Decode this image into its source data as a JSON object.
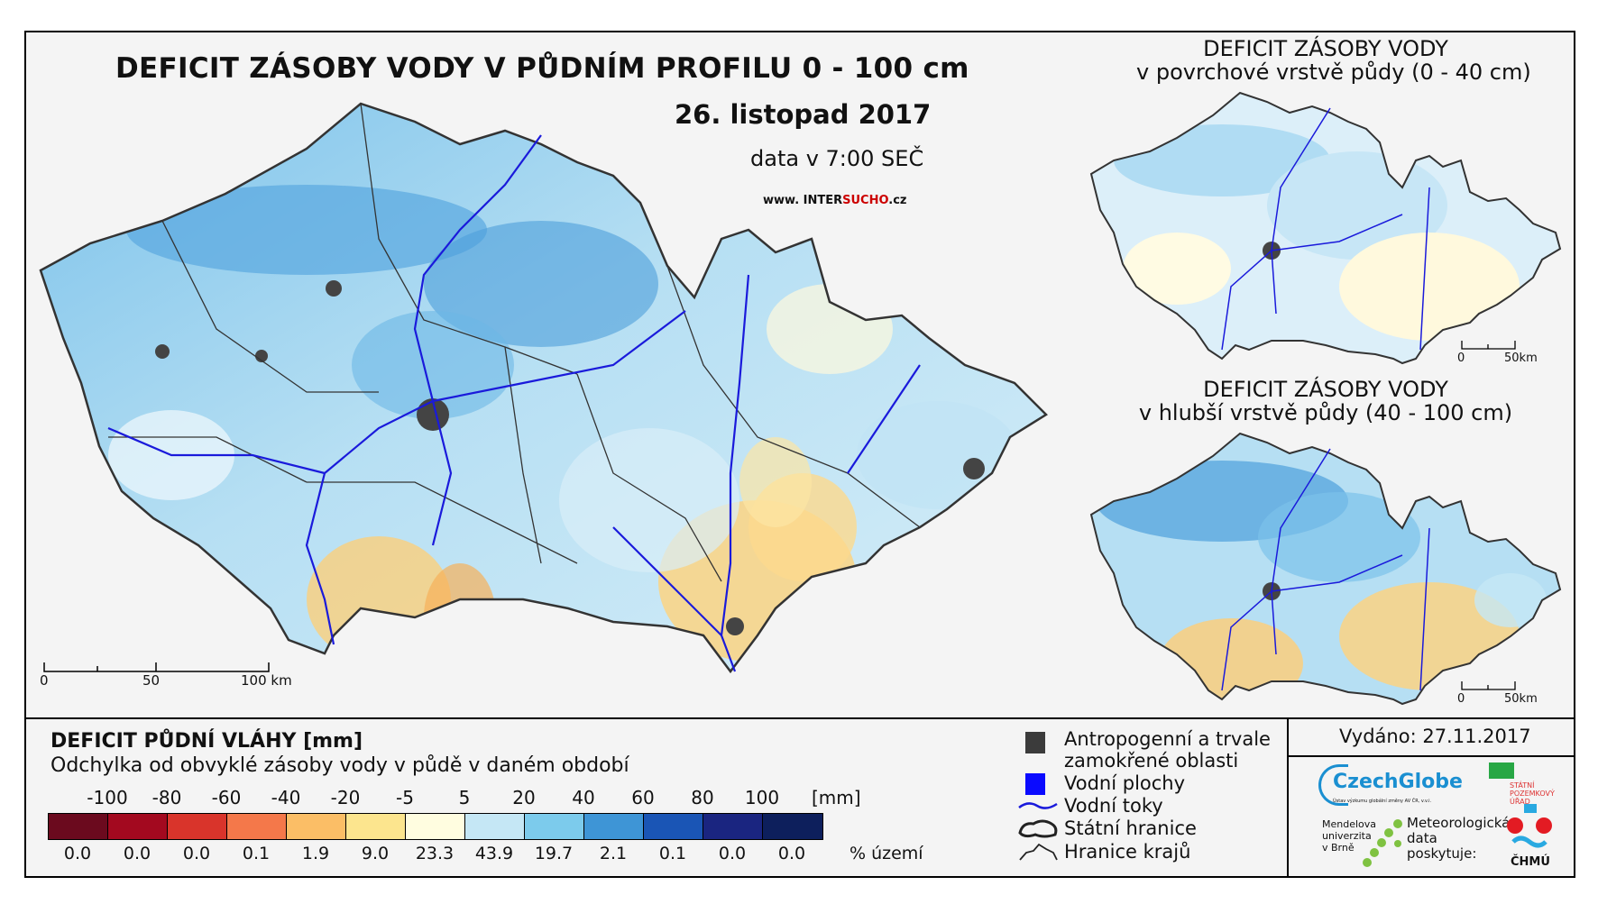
{
  "main": {
    "title": "DEFICIT ZÁSOBY VODY V PŮDNÍM PROFILU 0 - 100 cm",
    "date": "26. listopad 2017",
    "data_time": "data v 7:00 SEČ",
    "website_prefix": "www. INTER",
    "website_highlight": "SUCHO",
    "website_suffix": ".cz",
    "scale": {
      "labels": [
        "0",
        "50",
        "100 km"
      ]
    }
  },
  "inset_top": {
    "title": "DEFICIT ZÁSOBY VODY",
    "subtitle": "v povrchové vrstvě půdy (0 - 40 cm)",
    "scale": {
      "labels": [
        "0",
        "50km"
      ]
    }
  },
  "inset_bottom": {
    "title": "DEFICIT ZÁSOBY VODY",
    "subtitle": "v hlubší vrstvě půdy (40 - 100 cm)",
    "scale": {
      "labels": [
        "0",
        "50km"
      ]
    }
  },
  "legend": {
    "title": "DEFICIT PŮDNÍ VLÁHY [mm]",
    "subtitle": "Odchylka od obvyklé zásoby vody v půdě v daném období",
    "ticks": [
      "-100",
      "-80",
      "-60",
      "-40",
      "-20",
      "-5",
      "5",
      "20",
      "40",
      "60",
      "80",
      "100"
    ],
    "unit": "[mm]",
    "colors": [
      "#6b0a1e",
      "#a3091f",
      "#d9342b",
      "#f4784a",
      "#fbbe66",
      "#fce58e",
      "#fffde0",
      "#c5e7f5",
      "#7ccbec",
      "#3e95d6",
      "#1a55b5",
      "#1a2580",
      "#0d1f5c"
    ],
    "percent": [
      "0.0",
      "0.0",
      "0.0",
      "0.1",
      "1.9",
      "9.0",
      "23.3",
      "43.9",
      "19.7",
      "2.1",
      "0.1",
      "0.0",
      "0.0"
    ],
    "percent_label": "% území"
  },
  "symbols": {
    "anthropogenic_line1": "Antropogenní a trvale",
    "anthropogenic_line2": "zamokřené oblasti",
    "water_bodies": "Vodní plochy",
    "rivers": "Vodní toky",
    "state_border": "Státní hranice",
    "region_border": "Hranice krajů"
  },
  "issued": "Vydáno: 27.11.2017",
  "logos": {
    "czechglobe": "CzechGlobe",
    "czechglobe_sub": "Ústav výzkumu globální změny AV ČR, v.v.i.",
    "spu_line1": "STÁTNÍ",
    "spu_line2": "POZEMKOVÝ",
    "spu_line3": "ÚŘAD",
    "mendelu_line1": "Mendelova",
    "mendelu_line2": "univerzita",
    "mendelu_line3": "v Brně",
    "meteo_line1": "Meteorologická",
    "meteo_line2": "data",
    "meteo_line3": "poskytuje:",
    "chmu": "ČHMÚ"
  }
}
